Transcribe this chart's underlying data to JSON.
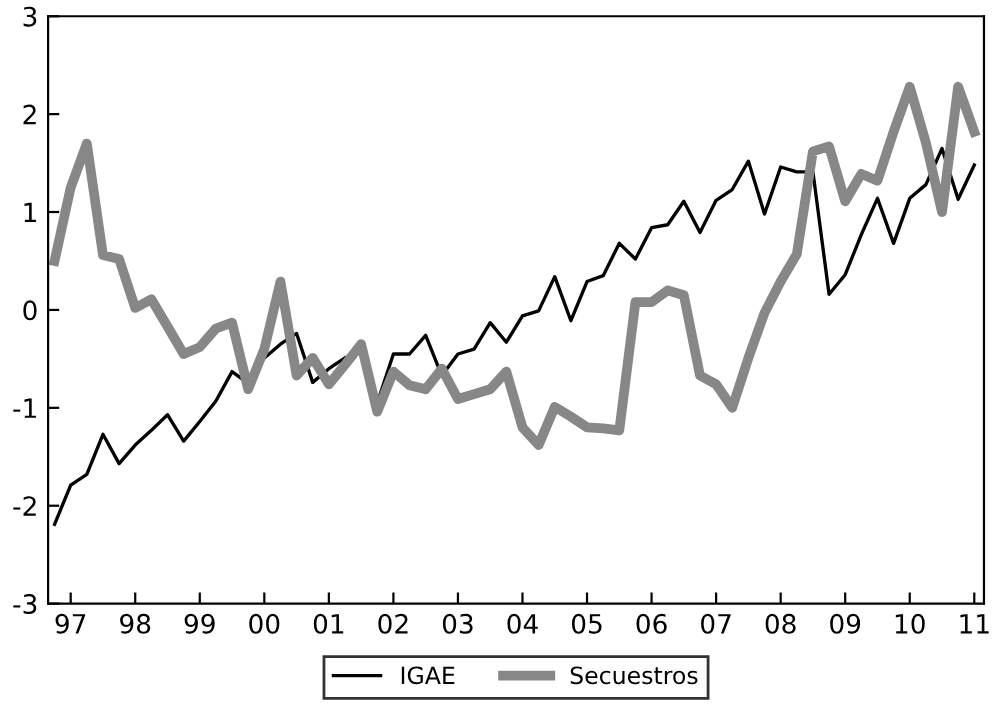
{
  "chart_data": {
    "type": "line",
    "x": [
      1996.75,
      1997.0,
      1997.25,
      1997.5,
      1997.75,
      1998.0,
      1998.25,
      1998.5,
      1998.75,
      1999.0,
      1999.25,
      1999.5,
      1999.75,
      2000.0,
      2000.25,
      2000.5,
      2000.75,
      2001.0,
      2001.25,
      2001.5,
      2001.75,
      2002.0,
      2002.25,
      2002.5,
      2002.75,
      2003.0,
      2003.25,
      2003.5,
      2003.75,
      2004.0,
      2004.25,
      2004.5,
      2004.75,
      2005.0,
      2005.25,
      2005.5,
      2005.75,
      2006.0,
      2006.25,
      2006.5,
      2006.75,
      2007.0,
      2007.25,
      2007.5,
      2007.75,
      2008.0,
      2008.25,
      2008.5,
      2008.75,
      2009.0,
      2009.25,
      2009.5,
      2009.75,
      2010.0,
      2010.25,
      2010.5,
      2010.75,
      2011.0
    ],
    "series": [
      {
        "name": "IGAE",
        "color": "#000000",
        "values": [
          -2.19,
          -1.79,
          -1.68,
          -1.27,
          -1.57,
          -1.38,
          -1.23,
          -1.07,
          -1.34,
          -1.14,
          -0.93,
          -0.63,
          -0.75,
          -0.49,
          -0.35,
          -0.24,
          -0.74,
          -0.6,
          -0.49,
          null,
          -0.95,
          -0.45,
          -0.45,
          -0.26,
          -0.67,
          -0.45,
          -0.4,
          -0.13,
          -0.33,
          -0.06,
          -0.01,
          0.34,
          -0.11,
          0.29,
          0.35,
          0.68,
          0.52,
          0.84,
          0.87,
          1.11,
          0.79,
          1.12,
          1.23,
          1.52,
          0.98,
          1.46,
          1.41,
          1.41,
          0.16,
          0.36,
          0.77,
          1.14,
          0.68,
          1.14,
          1.28,
          1.65,
          1.13,
          1.48
        ]
      },
      {
        "name": "Secuestros",
        "color": "#878787",
        "values": [
          0.5,
          1.25,
          1.7,
          0.56,
          0.52,
          0.02,
          0.11,
          -0.17,
          -0.45,
          -0.38,
          -0.19,
          -0.13,
          -0.81,
          -0.4,
          0.29,
          -0.67,
          -0.49,
          -0.76,
          -0.56,
          -0.35,
          -1.04,
          -0.63,
          -0.77,
          -0.81,
          -0.6,
          -0.91,
          -0.86,
          -0.81,
          -0.63,
          -1.2,
          -1.38,
          -0.99,
          -1.09,
          -1.2,
          -1.21,
          -1.23,
          0.08,
          0.08,
          0.2,
          0.15,
          -0.67,
          -0.76,
          -1.0,
          -0.49,
          -0.03,
          0.29,
          0.57,
          1.62,
          1.67,
          1.11,
          1.39,
          1.32,
          1.82,
          2.28,
          1.71,
          1.0,
          2.28,
          1.82
        ]
      }
    ],
    "xlim": [
      1996.65,
      2011.15
    ],
    "xticks": [
      {
        "value": 1997,
        "label": "97"
      },
      {
        "value": 1998,
        "label": "98"
      },
      {
        "value": 1999,
        "label": "99"
      },
      {
        "value": 2000,
        "label": "00"
      },
      {
        "value": 2001,
        "label": "01"
      },
      {
        "value": 2002,
        "label": "02"
      },
      {
        "value": 2003,
        "label": "03"
      },
      {
        "value": 2004,
        "label": "04"
      },
      {
        "value": 2005,
        "label": "05"
      },
      {
        "value": 2006,
        "label": "06"
      },
      {
        "value": 2007,
        "label": "07"
      },
      {
        "value": 2008,
        "label": "08"
      },
      {
        "value": 2009,
        "label": "09"
      },
      {
        "value": 2010,
        "label": "10"
      },
      {
        "value": 2011,
        "label": "11"
      }
    ],
    "ylim": [
      -3,
      3
    ],
    "yticks": [
      -3,
      -2,
      -1,
      0,
      1,
      2,
      3
    ],
    "grid": false,
    "legend": "bottom",
    "marker": "none",
    "line_style": "solid"
  }
}
